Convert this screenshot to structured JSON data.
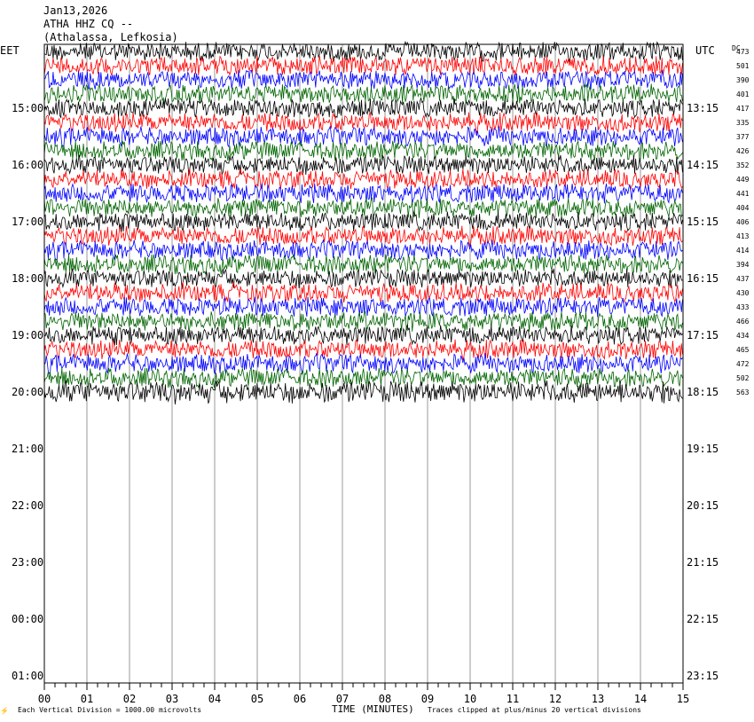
{
  "header": {
    "date": "Jan13,2026",
    "station": "ATHA HHZ CQ --",
    "location": "(Athalassa, Lefkosia)"
  },
  "labels": {
    "left_tz": "EET",
    "right_tz": "UTC",
    "dc_header": "DC",
    "xlabel": "TIME (MINUTES)",
    "scale_note": "Each Vertical Division = 1000.00 microvolts",
    "clip_note": "Traces clipped at plus/minus 20 vertical divisions",
    "corner_mark": "⚡"
  },
  "chart_data": {
    "type": "line",
    "title": "ATHA HHZ CQ --",
    "xlabel": "TIME (MINUTES)",
    "xlim": [
      0,
      15
    ],
    "x_ticks": [
      "00",
      "01",
      "02",
      "03",
      "04",
      "05",
      "06",
      "07",
      "08",
      "09",
      "10",
      "11",
      "12",
      "13",
      "14",
      "15"
    ],
    "rows_total": 45,
    "rows_with_data": 25,
    "trace_colors": [
      "#000000",
      "#ff0000",
      "#0000ff",
      "#006400"
    ],
    "left_hour_labels": [
      "15:00",
      "16:00",
      "17:00",
      "18:00",
      "19:00",
      "20:00",
      "21:00",
      "22:00",
      "23:00",
      "00:00",
      "01:00"
    ],
    "right_hour_labels": [
      "13:15",
      "14:15",
      "15:15",
      "16:15",
      "17:15",
      "18:15",
      "19:15",
      "20:15",
      "21:15",
      "22:15",
      "23:15"
    ],
    "dc_offsets": [
      473,
      501,
      390,
      401,
      417,
      335,
      377,
      426,
      352,
      449,
      441,
      404,
      406,
      413,
      414,
      394,
      437,
      430,
      433,
      466,
      434,
      465,
      472,
      502,
      563
    ]
  }
}
